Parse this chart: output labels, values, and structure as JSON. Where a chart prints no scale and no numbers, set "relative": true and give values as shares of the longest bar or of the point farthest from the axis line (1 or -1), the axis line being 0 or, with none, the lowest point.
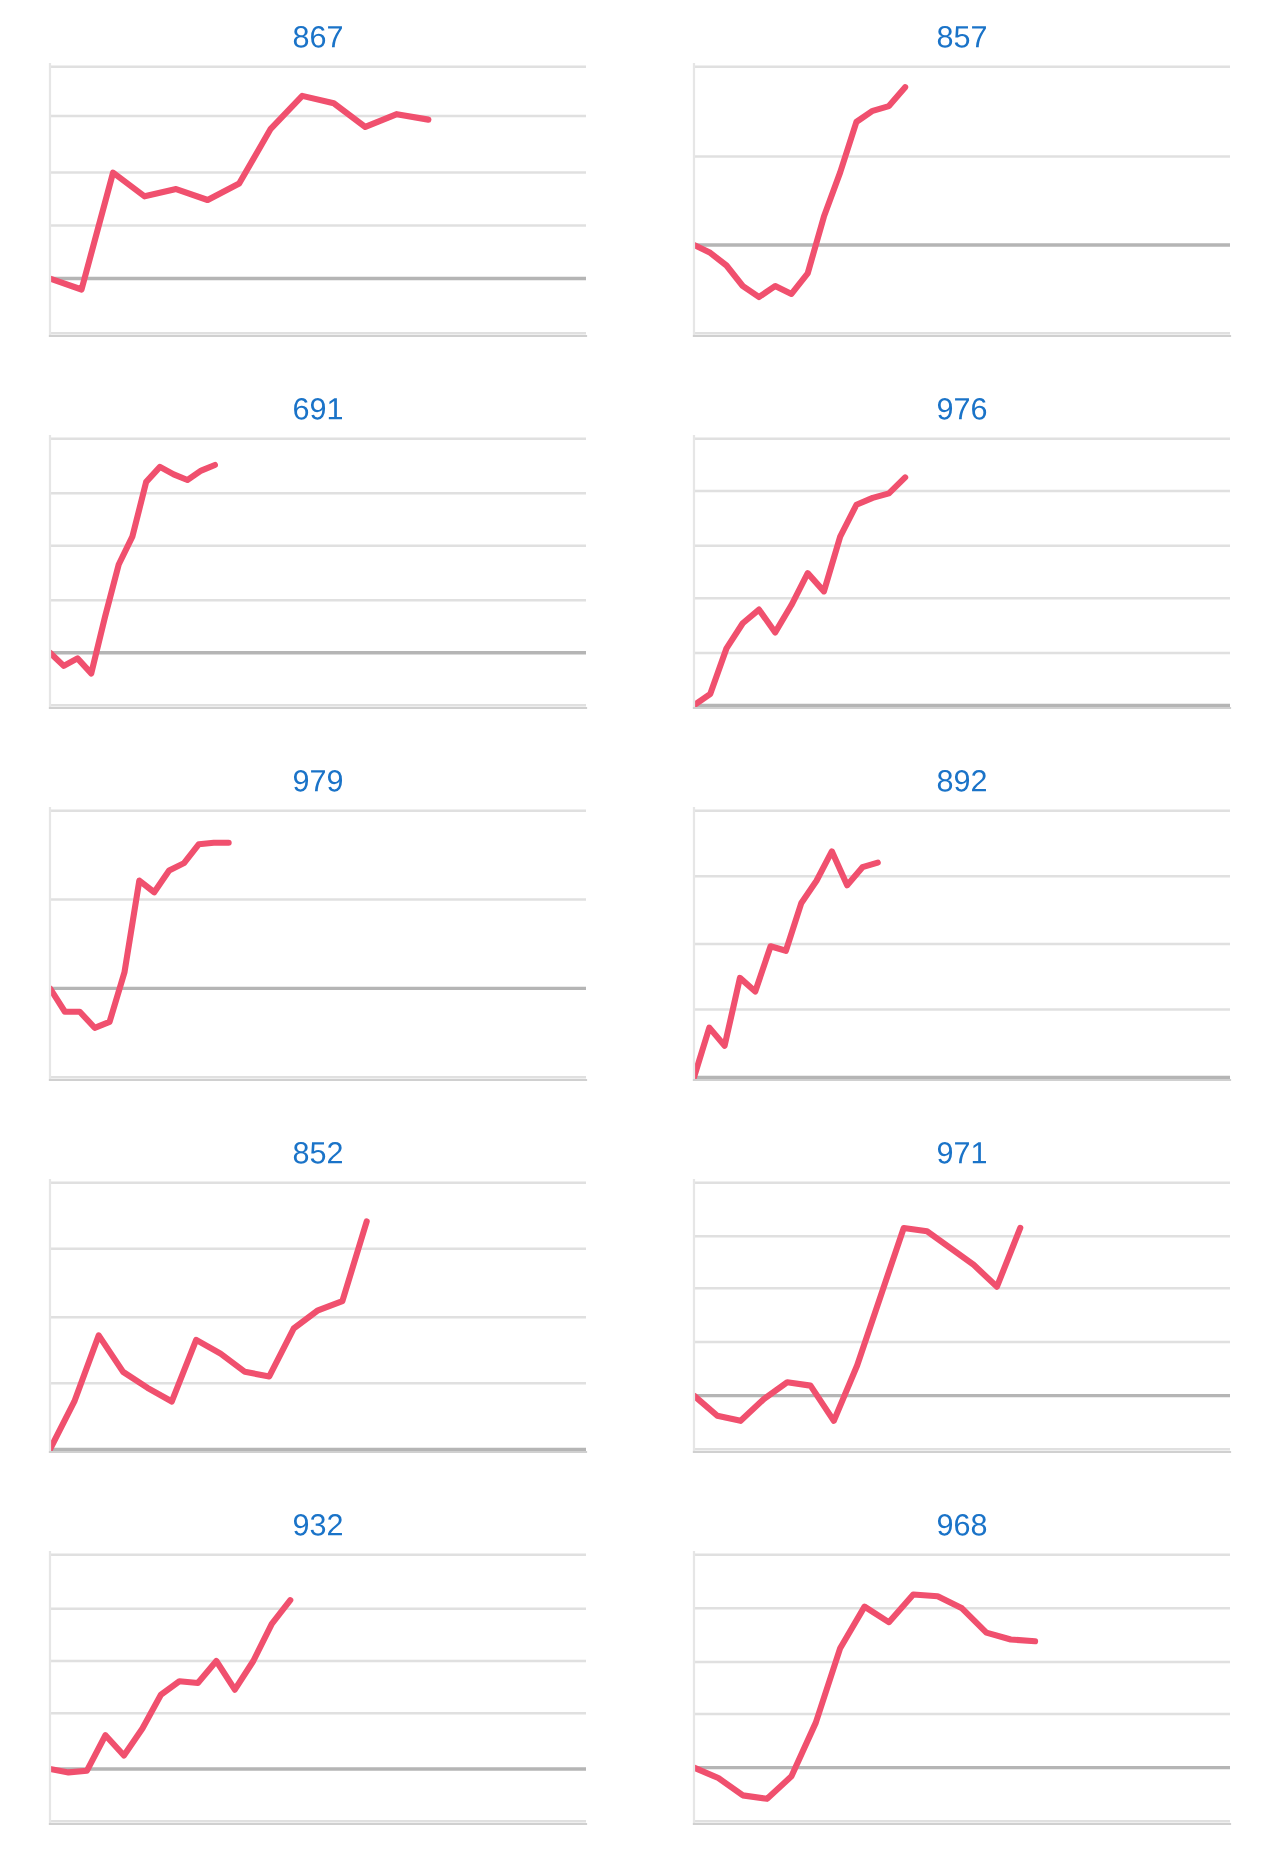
{
  "chart_data": [
    {
      "type": "line",
      "title": "867",
      "relative": true,
      "ref_lines": [
        {
          "axis": "y",
          "value": 1.16
        },
        {
          "axis": "y",
          "value": 0.89
        },
        {
          "axis": "y",
          "value": 0.58
        },
        {
          "axis": "y",
          "value": 0.29
        },
        {
          "axis": "y",
          "value": -0.3
        }
      ],
      "color": "#f0506e",
      "categories": [
        null,
        null,
        null,
        null,
        null,
        null,
        null,
        null,
        null,
        null,
        null,
        null,
        null,
        null,
        null,
        null,
        null,
        null
      ],
      "values": [
        0,
        -0.06,
        0.58,
        0.45,
        0.49,
        0.43,
        0.52,
        0.82,
        1,
        0.96,
        0.83,
        0.9,
        0.87,
        null,
        null,
        null,
        null,
        null
      ]
    },
    {
      "type": "line",
      "title": "857",
      "relative": true,
      "ref_lines": [
        {
          "axis": "y",
          "value": 1.13
        },
        {
          "axis": "y",
          "value": 0.56
        },
        {
          "axis": "y",
          "value": -0.56
        }
      ],
      "color": "#f0506e",
      "categories": [
        null,
        null,
        null,
        null,
        null,
        null,
        null,
        null,
        null,
        null,
        null,
        null,
        null,
        null,
        null,
        null,
        null,
        null,
        null,
        null,
        null,
        null,
        null,
        null,
        null,
        null,
        null,
        null,
        null,
        null,
        null,
        null,
        null,
        null
      ],
      "values": [
        0,
        -0.05,
        -0.13,
        -0.26,
        -0.33,
        -0.26,
        -0.31,
        -0.18,
        0.18,
        0.46,
        0.78,
        0.85,
        0.88,
        1,
        null,
        null,
        null,
        null,
        null,
        null,
        null,
        null,
        null,
        null,
        null,
        null,
        null,
        null,
        null,
        null,
        null,
        null,
        null,
        null
      ]
    },
    {
      "type": "line",
      "title": "691",
      "relative": true,
      "ref_lines": [
        {
          "axis": "y",
          "value": 1.14
        },
        {
          "axis": "y",
          "value": 0.85
        },
        {
          "axis": "y",
          "value": 0.57
        },
        {
          "axis": "y",
          "value": 0.28
        },
        {
          "axis": "y",
          "value": -0.28
        }
      ],
      "color": "#f0506e",
      "categories": [
        null,
        null,
        null,
        null,
        null,
        null,
        null,
        null,
        null,
        null,
        null,
        null,
        null,
        null,
        null,
        null,
        null,
        null,
        null,
        null,
        null,
        null,
        null,
        null,
        null,
        null,
        null,
        null,
        null,
        null,
        null,
        null,
        null,
        null,
        null,
        null,
        null,
        null,
        null,
        null
      ],
      "values": [
        0,
        -0.07,
        -0.03,
        -0.11,
        0.19,
        0.47,
        0.62,
        0.91,
        0.99,
        0.95,
        0.92,
        0.97,
        1,
        null,
        null,
        null,
        null,
        null,
        null,
        null,
        null,
        null,
        null,
        null,
        null,
        null,
        null,
        null,
        null,
        null,
        null,
        null,
        null,
        null,
        null,
        null,
        null,
        null,
        null,
        null
      ]
    },
    {
      "type": "line",
      "title": "976",
      "relative": true,
      "ref_lines": [
        {
          "axis": "y",
          "value": 1.17
        },
        {
          "axis": "y",
          "value": 0.94
        },
        {
          "axis": "y",
          "value": 0.7
        },
        {
          "axis": "y",
          "value": 0.47
        },
        {
          "axis": "y",
          "value": 0.23
        }
      ],
      "color": "#f0506e",
      "categories": [
        null,
        null,
        null,
        null,
        null,
        null,
        null,
        null,
        null,
        null,
        null,
        null,
        null,
        null,
        null,
        null,
        null,
        null,
        null,
        null,
        null,
        null,
        null,
        null,
        null,
        null,
        null,
        null,
        null,
        null,
        null,
        null,
        null,
        null
      ],
      "values": [
        0,
        0.05,
        0.25,
        0.36,
        0.42,
        0.32,
        0.44,
        0.58,
        0.5,
        0.74,
        0.88,
        0.91,
        0.93,
        1,
        null,
        null,
        null,
        null,
        null,
        null,
        null,
        null,
        null,
        null,
        null,
        null,
        null,
        null,
        null,
        null,
        null,
        null,
        null,
        null
      ]
    },
    {
      "type": "line",
      "title": "979",
      "relative": true,
      "ref_lines": [
        {
          "axis": "y",
          "value": 1.22
        },
        {
          "axis": "y",
          "value": 0.61
        },
        {
          "axis": "y",
          "value": -0.61
        }
      ],
      "color": "#f0506e",
      "categories": [
        null,
        null,
        null,
        null,
        null,
        null,
        null,
        null,
        null,
        null,
        null,
        null,
        null,
        null,
        null,
        null,
        null,
        null,
        null,
        null,
        null,
        null,
        null,
        null,
        null,
        null,
        null,
        null,
        null,
        null,
        null,
        null,
        null,
        null,
        null,
        null,
        null
      ],
      "values": [
        0,
        -0.16,
        -0.16,
        -0.27,
        -0.23,
        0.11,
        0.74,
        0.66,
        0.81,
        0.86,
        0.99,
        1,
        1,
        null,
        null,
        null,
        null,
        null,
        null,
        null,
        null,
        null,
        null,
        null,
        null,
        null,
        null,
        null,
        null,
        null,
        null,
        null,
        null,
        null,
        null,
        null,
        null
      ]
    },
    {
      "type": "line",
      "title": "892",
      "relative": true,
      "ref_lines": [
        {
          "axis": "y",
          "value": 1.18
        },
        {
          "axis": "y",
          "value": 0.89
        },
        {
          "axis": "y",
          "value": 0.59
        },
        {
          "axis": "y",
          "value": 0.3
        }
      ],
      "color": "#f0506e",
      "categories": [
        null,
        null,
        null,
        null,
        null,
        null,
        null,
        null,
        null,
        null,
        null,
        null,
        null,
        null,
        null,
        null,
        null,
        null,
        null,
        null,
        null,
        null,
        null,
        null,
        null,
        null,
        null,
        null,
        null,
        null,
        null,
        null,
        null,
        null,
        null,
        null
      ],
      "values": [
        0,
        0.22,
        0.14,
        0.44,
        0.38,
        0.58,
        0.56,
        0.77,
        0.87,
        1,
        0.85,
        0.93,
        0.95,
        null,
        null,
        null,
        null,
        null,
        null,
        null,
        null,
        null,
        null,
        null,
        null,
        null,
        null,
        null,
        null,
        null,
        null,
        null,
        null,
        null,
        null,
        null
      ]
    },
    {
      "type": "line",
      "title": "852",
      "relative": true,
      "ref_lines": [
        {
          "axis": "y",
          "value": 1.17
        },
        {
          "axis": "y",
          "value": 0.88
        },
        {
          "axis": "y",
          "value": 0.58
        },
        {
          "axis": "y",
          "value": 0.29
        }
      ],
      "color": "#f0506e",
      "categories": [
        null,
        null,
        null,
        null,
        null,
        null,
        null,
        null,
        null,
        null,
        null,
        null,
        null,
        null,
        null,
        null,
        null,
        null,
        null,
        null,
        null,
        null,
        null
      ],
      "values": [
        0,
        0.21,
        0.5,
        0.34,
        0.27,
        0.21,
        0.48,
        0.42,
        0.34,
        0.32,
        0.53,
        0.61,
        0.65,
        1,
        null,
        null,
        null,
        null,
        null,
        null,
        null,
        null,
        null
      ]
    },
    {
      "type": "line",
      "title": "971",
      "relative": true,
      "ref_lines": [
        {
          "axis": "y",
          "value": 1.27
        },
        {
          "axis": "y",
          "value": 0.95
        },
        {
          "axis": "y",
          "value": 0.64
        },
        {
          "axis": "y",
          "value": 0.32
        },
        {
          "axis": "y",
          "value": -0.32
        }
      ],
      "color": "#f0506e",
      "categories": [
        null,
        null,
        null,
        null,
        null,
        null,
        null,
        null,
        null,
        null,
        null,
        null,
        null,
        null,
        null,
        null,
        null,
        null,
        null,
        null,
        null,
        null,
        null,
        null
      ],
      "values": [
        0,
        -0.12,
        -0.15,
        -0.02,
        0.08,
        0.06,
        -0.15,
        0.18,
        0.59,
        1,
        0.98,
        0.88,
        0.78,
        0.65,
        1,
        null,
        null,
        null,
        null,
        null,
        null,
        null,
        null,
        null
      ]
    },
    {
      "type": "line",
      "title": "932",
      "relative": true,
      "ref_lines": [
        {
          "axis": "y",
          "value": 1.27
        },
        {
          "axis": "y",
          "value": 0.95
        },
        {
          "axis": "y",
          "value": 0.64
        },
        {
          "axis": "y",
          "value": 0.33
        },
        {
          "axis": "y",
          "value": -0.31
        }
      ],
      "color": "#f0506e",
      "categories": [
        null,
        null,
        null,
        null,
        null,
        null,
        null,
        null,
        null,
        null,
        null,
        null,
        null,
        null,
        null,
        null,
        null,
        null,
        null,
        null,
        null,
        null,
        null,
        null,
        null,
        null,
        null,
        null,
        null,
        null
      ],
      "values": [
        0,
        -0.02,
        -0.01,
        0.2,
        0.08,
        0.24,
        0.44,
        0.52,
        0.51,
        0.64,
        0.47,
        0.64,
        0.86,
        1,
        null,
        null,
        null,
        null,
        null,
        null,
        null,
        null,
        null,
        null,
        null,
        null,
        null,
        null,
        null,
        null
      ]
    },
    {
      "type": "line",
      "title": "968",
      "relative": true,
      "ref_lines": [
        {
          "axis": "y",
          "value": 1.23
        },
        {
          "axis": "y",
          "value": 0.92
        },
        {
          "axis": "y",
          "value": 0.61
        },
        {
          "axis": "y",
          "value": 0.31
        },
        {
          "axis": "y",
          "value": -0.31
        }
      ],
      "color": "#f0506e",
      "categories": [
        null,
        null,
        null,
        null,
        null,
        null,
        null,
        null,
        null,
        null,
        null,
        null,
        null,
        null,
        null,
        null,
        null,
        null,
        null,
        null,
        null,
        null,
        null
      ],
      "values": [
        0,
        -0.06,
        -0.16,
        -0.18,
        -0.05,
        0.26,
        0.69,
        0.93,
        0.84,
        1,
        0.99,
        0.92,
        0.78,
        0.74,
        0.73,
        null,
        null,
        null,
        null,
        null,
        null,
        null,
        null
      ]
    }
  ]
}
